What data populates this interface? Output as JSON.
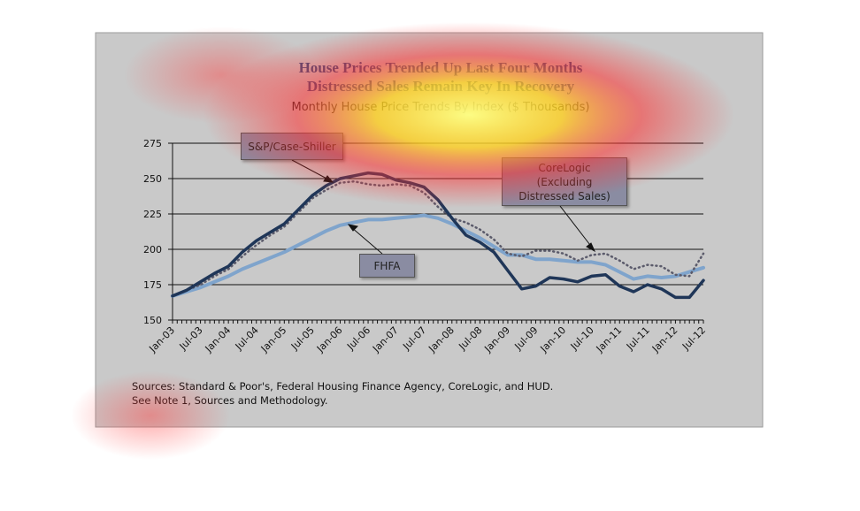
{
  "chart_data": {
    "type": "line",
    "title": [
      "House Prices Trended Up Last Four Months",
      "Distressed Sales Remain Key In Recovery"
    ],
    "subtitle": "Monthly House Price Trends By Index ($ Thousands)",
    "categories": [
      "Jan-03",
      null,
      "Jul-03",
      null,
      "Jan-04",
      null,
      "Jul-04",
      null,
      "Jan-05",
      null,
      "Jul-05",
      null,
      "Jan-06",
      null,
      "Jul-06",
      null,
      "Jan-07",
      null,
      "Jul-07",
      null,
      "Jan-08",
      null,
      "Jul-08",
      null,
      "Jan-09",
      null,
      "Jul-09",
      null,
      "Jan-10",
      null,
      "Jul-10",
      null,
      "Jan-11",
      null,
      "Jul-11",
      null,
      "Jan-12",
      null,
      "Jul-12"
    ],
    "series": [
      {
        "name": "S&P/Case-Shiller",
        "color": "#1f3658",
        "width": 3.5,
        "dash": false,
        "values": [
          167,
          171,
          177,
          183,
          188,
          198,
          206,
          212,
          218,
          228,
          238,
          245,
          250,
          252,
          254,
          253,
          249,
          247,
          244,
          235,
          222,
          210,
          205,
          198,
          185,
          172,
          174,
          180,
          179,
          177,
          181,
          182,
          174,
          170,
          175,
          172,
          166,
          166,
          178
        ]
      },
      {
        "name": "CoreLogic (Excluding Distressed Sales)",
        "color": "#5b5b6b",
        "width": 2.5,
        "dash": true,
        "values": [
          167,
          171,
          175,
          181,
          186,
          195,
          203,
          210,
          216,
          226,
          236,
          242,
          247,
          248,
          246,
          245,
          246,
          245,
          240,
          230,
          222,
          219,
          214,
          207,
          197,
          195,
          199,
          199,
          197,
          192,
          196,
          197,
          192,
          186,
          189,
          188,
          182,
          181,
          197
        ]
      },
      {
        "name": "FHFA",
        "color": "#7fa4cc",
        "width": 4,
        "dash": false,
        "values": [
          167,
          170,
          173,
          177,
          181,
          186,
          190,
          194,
          198,
          203,
          208,
          213,
          217,
          219,
          221,
          221,
          222,
          223,
          224,
          222,
          218,
          213,
          208,
          202,
          196,
          196,
          193,
          193,
          192,
          191,
          191,
          189,
          184,
          179,
          181,
          180,
          181,
          184,
          187
        ]
      }
    ],
    "ylim": [
      150,
      275
    ],
    "yticks": [
      150,
      175,
      200,
      225,
      250,
      275
    ],
    "grid": true,
    "source": [
      "Sources:  Standard & Poor's, Federal Housing Finance Agency, CoreLogic, and HUD.",
      "See Note 1, Sources and Methodology."
    ]
  }
}
